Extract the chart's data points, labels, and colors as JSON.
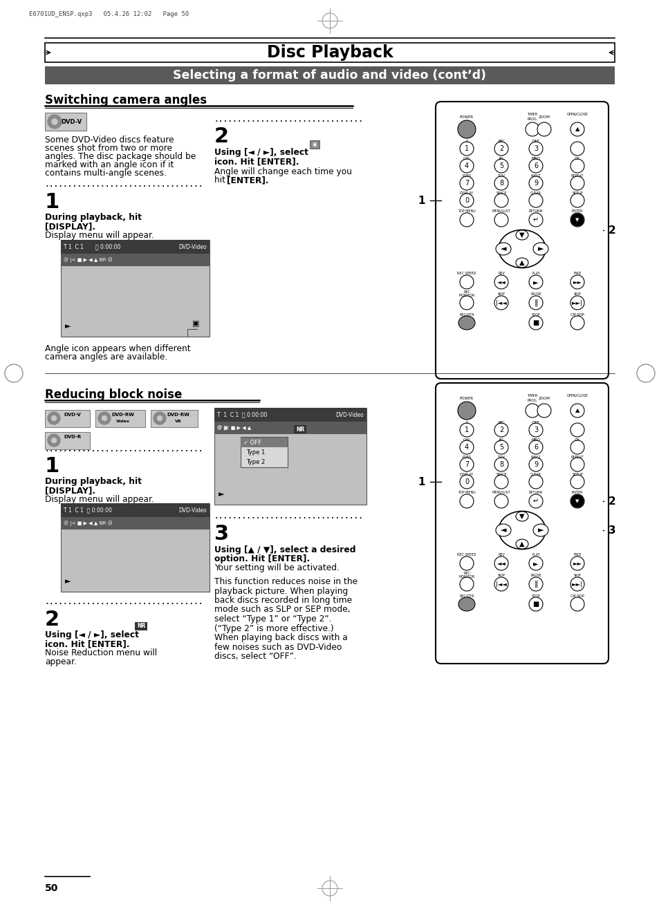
{
  "page_bg": "#ffffff",
  "header_text": "Disc Playback",
  "subheader_text": "Selecting a format of audio and video (cont’d)",
  "subheader_bg": "#5a5a5a",
  "section1_title": "Switching camera angles",
  "section2_title": "Reducing block noise",
  "top_label": "E6701UD_ENSP.qxp3   05.4.26 12:02   Page 50",
  "page_number": "50",
  "body_text_color": "#000000"
}
